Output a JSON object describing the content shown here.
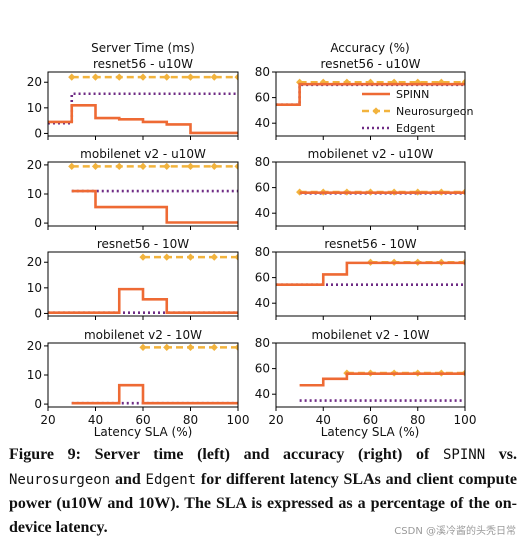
{
  "headers": {
    "server_time": "Server Time (ms)",
    "accuracy": "Accuracy (%)"
  },
  "xlabel": "Latency SLA (%)",
  "legend": [
    "SPINN",
    "Neurosurgeon",
    "Edgent"
  ],
  "colors": {
    "SPINN": "#ee6a34",
    "Neurosurgeon": "#f2b33d",
    "Edgent": "#6f2c85"
  },
  "caption": {
    "lead": "Figure 9: Server time (left) and accuracy (right) of ",
    "t1": "SPINN",
    "mid1": " vs. ",
    "t2": "Neurosurgeon",
    "mid2": " and ",
    "t3": "Edgent",
    "tail": " for different latency SLAs and client compute power (u10W and 10W). The SLA is expressed as a percentage of the on-device latency."
  },
  "watermark": "CSDN @溪冷酱的头秃日常",
  "chart_data": [
    {
      "type": "line",
      "panel": "server",
      "title": "resnet56 - u10W",
      "xlim": [
        20,
        100
      ],
      "ylim": [
        -1,
        24
      ],
      "yticks": [
        0,
        10,
        20
      ],
      "xticks": [
        20,
        40,
        60,
        80,
        100
      ],
      "series": [
        {
          "name": "SPINN",
          "step": true,
          "x": [
            20,
            30,
            40,
            50,
            60,
            70,
            80,
            100
          ],
          "y": [
            4.5,
            11,
            6,
            5.5,
            4.5,
            3.5,
            0.2,
            0.2
          ]
        },
        {
          "name": "Neurosurgeon",
          "step": false,
          "x": [
            30,
            40,
            50,
            60,
            70,
            80,
            90,
            100
          ],
          "y": [
            22,
            22,
            22,
            22,
            22,
            22,
            22,
            22
          ]
        },
        {
          "name": "Edgent",
          "step": true,
          "x": [
            20,
            30,
            100
          ],
          "y": [
            4,
            15.5,
            15.5
          ]
        }
      ]
    },
    {
      "type": "line",
      "panel": "accuracy",
      "title": "resnet56 - u10W",
      "xlim": [
        20,
        100
      ],
      "ylim": [
        30,
        80
      ],
      "yticks": [
        40,
        60,
        80
      ],
      "xticks": [
        20,
        40,
        60,
        80,
        100
      ],
      "series": [
        {
          "name": "SPINN",
          "step": true,
          "x": [
            20,
            30,
            100
          ],
          "y": [
            54.5,
            70.5,
            70.5
          ]
        },
        {
          "name": "Neurosurgeon",
          "step": false,
          "x": [
            30,
            40,
            50,
            60,
            70,
            80,
            90,
            100
          ],
          "y": [
            72,
            72,
            72,
            72,
            72,
            72,
            72,
            72
          ]
        },
        {
          "name": "Edgent",
          "step": true,
          "x": [
            20,
            30,
            100
          ],
          "y": [
            54.5,
            70,
            70
          ]
        }
      ]
    },
    {
      "type": "line",
      "panel": "server",
      "title": "mobilenet v2 - u10W",
      "xlim": [
        20,
        100
      ],
      "ylim": [
        -1,
        21
      ],
      "yticks": [
        0,
        10,
        20
      ],
      "xticks": [
        20,
        40,
        60,
        80,
        100
      ],
      "series": [
        {
          "name": "SPINN",
          "step": true,
          "x": [
            30,
            40,
            50,
            60,
            70,
            100
          ],
          "y": [
            11,
            5.5,
            5.5,
            5.5,
            0.2,
            0.2
          ]
        },
        {
          "name": "Neurosurgeon",
          "step": false,
          "x": [
            30,
            40,
            50,
            60,
            70,
            80,
            90,
            100
          ],
          "y": [
            19.5,
            19.5,
            19.5,
            19.5,
            19.5,
            19.5,
            19.5,
            19.5
          ]
        },
        {
          "name": "Edgent",
          "step": true,
          "x": [
            30,
            100
          ],
          "y": [
            11,
            11
          ]
        }
      ]
    },
    {
      "type": "line",
      "panel": "accuracy",
      "title": "mobilenet v2 - u10W",
      "xlim": [
        20,
        100
      ],
      "ylim": [
        30,
        80
      ],
      "yticks": [
        40,
        60,
        80
      ],
      "xticks": [
        20,
        40,
        60,
        80,
        100
      ],
      "series": [
        {
          "name": "SPINN",
          "step": true,
          "x": [
            30,
            100
          ],
          "y": [
            56,
            56
          ]
        },
        {
          "name": "Neurosurgeon",
          "step": false,
          "x": [
            30,
            40,
            50,
            60,
            70,
            80,
            90,
            100
          ],
          "y": [
            56.5,
            56.5,
            56.5,
            56.5,
            56.5,
            56.5,
            56.5,
            56.5
          ]
        },
        {
          "name": "Edgent",
          "step": true,
          "x": [
            30,
            100
          ],
          "y": [
            55.5,
            55.5
          ]
        }
      ]
    },
    {
      "type": "line",
      "panel": "server",
      "title": "resnet56 - 10W",
      "xlim": [
        20,
        100
      ],
      "ylim": [
        -1,
        24
      ],
      "yticks": [
        0,
        10,
        20
      ],
      "xticks": [
        20,
        40,
        60,
        80,
        100
      ],
      "series": [
        {
          "name": "SPINN",
          "step": true,
          "x": [
            20,
            50,
            60,
            70,
            100
          ],
          "y": [
            0.3,
            9.5,
            5.5,
            0.3,
            0.3
          ]
        },
        {
          "name": "Neurosurgeon",
          "step": false,
          "x": [
            60,
            70,
            80,
            90,
            100
          ],
          "y": [
            22,
            22,
            22,
            22,
            22
          ]
        },
        {
          "name": "Edgent",
          "step": true,
          "x": [
            20,
            100
          ],
          "y": [
            0.3,
            0.3
          ]
        }
      ]
    },
    {
      "type": "line",
      "panel": "accuracy",
      "title": "resnet56 - 10W",
      "xlim": [
        20,
        100
      ],
      "ylim": [
        30,
        80
      ],
      "yticks": [
        40,
        60,
        80
      ],
      "xticks": [
        20,
        40,
        60,
        80,
        100
      ],
      "series": [
        {
          "name": "SPINN",
          "step": true,
          "x": [
            20,
            40,
            50,
            100
          ],
          "y": [
            54.5,
            62.5,
            71.5,
            71.5
          ]
        },
        {
          "name": "Neurosurgeon",
          "step": false,
          "x": [
            60,
            70,
            80,
            90,
            100
          ],
          "y": [
            72,
            72,
            72,
            72,
            72
          ]
        },
        {
          "name": "Edgent",
          "step": true,
          "x": [
            20,
            100
          ],
          "y": [
            54.5,
            54.5
          ]
        }
      ]
    },
    {
      "type": "line",
      "panel": "server",
      "title": "mobilenet v2 - 10W",
      "xlim": [
        20,
        100
      ],
      "ylim": [
        -1,
        21
      ],
      "yticks": [
        0,
        10,
        20
      ],
      "xticks": [
        20,
        40,
        60,
        80,
        100
      ],
      "series": [
        {
          "name": "SPINN",
          "step": true,
          "x": [
            30,
            50,
            60,
            100
          ],
          "y": [
            0.3,
            6.5,
            0.3,
            0.3
          ]
        },
        {
          "name": "Neurosurgeon",
          "step": false,
          "x": [
            60,
            70,
            80,
            90,
            100
          ],
          "y": [
            19.5,
            19.5,
            19.5,
            19.5,
            19.5
          ]
        },
        {
          "name": "Edgent",
          "step": true,
          "x": [
            30,
            100
          ],
          "y": [
            0.3,
            0.3
          ]
        }
      ]
    },
    {
      "type": "line",
      "panel": "accuracy",
      "title": "mobilenet v2 - 10W",
      "xlim": [
        20,
        100
      ],
      "ylim": [
        30,
        80
      ],
      "yticks": [
        40,
        60,
        80
      ],
      "xticks": [
        20,
        40,
        60,
        80,
        100
      ],
      "series": [
        {
          "name": "SPINN",
          "step": true,
          "x": [
            30,
            40,
            50,
            100
          ],
          "y": [
            47,
            52,
            56,
            56
          ]
        },
        {
          "name": "Neurosurgeon",
          "step": false,
          "x": [
            50,
            60,
            70,
            80,
            90,
            100
          ],
          "y": [
            56.5,
            56.5,
            56.5,
            56.5,
            56.5,
            56.5
          ]
        },
        {
          "name": "Edgent",
          "step": true,
          "x": [
            30,
            100
          ],
          "y": [
            35,
            35
          ]
        }
      ]
    }
  ]
}
